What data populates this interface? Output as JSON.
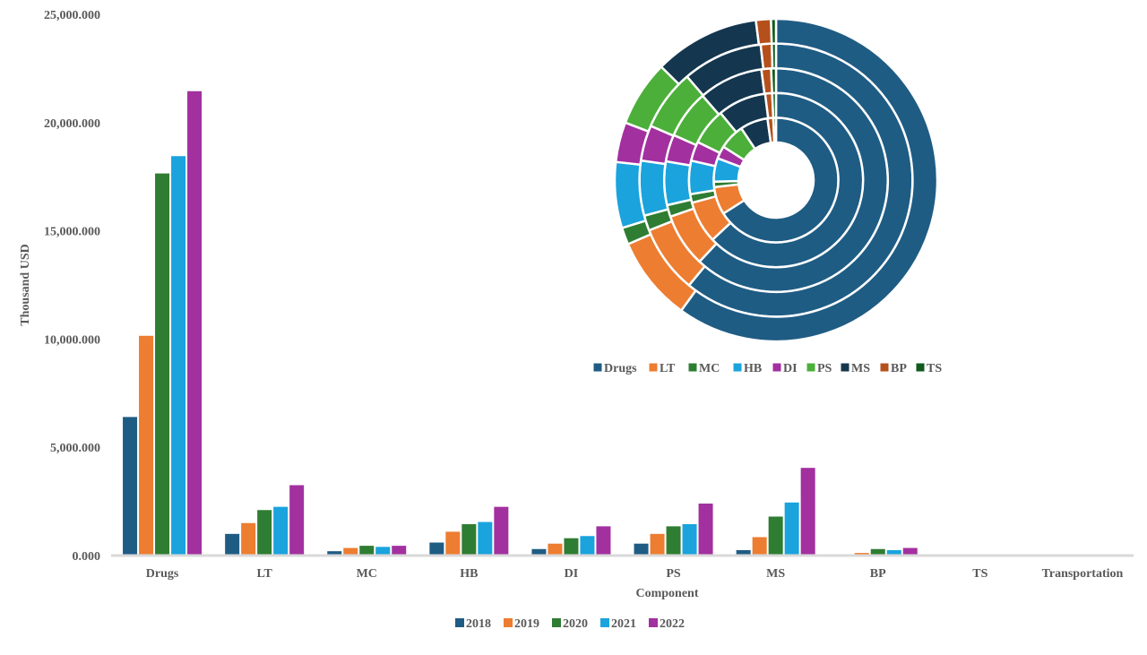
{
  "chart_data": [
    {
      "type": "bar",
      "xlabel": "Component",
      "ylabel": "Thousand USD",
      "ylim": [
        0,
        25000
      ],
      "y_ticks": [
        "0.000",
        "5,000.000",
        "10,000.000",
        "15,000.000",
        "20,000.000",
        "25,000.000"
      ],
      "y_tick_values": [
        0,
        5000,
        10000,
        15000,
        20000,
        25000
      ],
      "categories": [
        "Drugs",
        "LT",
        "MC",
        "HB",
        "DI",
        "PS",
        "MS",
        "BP",
        "TS",
        "Transportation"
      ],
      "legend_position": "bottom",
      "series": [
        {
          "name": "2018",
          "color": "#1f5c84",
          "values": [
            6400,
            1000,
            200,
            600,
            300,
            550,
            250,
            50,
            0,
            0
          ]
        },
        {
          "name": "2019",
          "color": "#ed7d31",
          "values": [
            10150,
            1500,
            350,
            1100,
            550,
            1000,
            850,
            120,
            0,
            0
          ]
        },
        {
          "name": "2020",
          "color": "#2e7d32",
          "values": [
            17650,
            2100,
            450,
            1450,
            800,
            1350,
            1800,
            300,
            0,
            0
          ]
        },
        {
          "name": "2021",
          "color": "#1aa3dd",
          "values": [
            18450,
            2250,
            400,
            1550,
            900,
            1450,
            2450,
            250,
            0,
            0
          ]
        },
        {
          "name": "2022",
          "color": "#a2309f",
          "values": [
            21450,
            3250,
            450,
            2250,
            1350,
            2400,
            4050,
            350,
            0,
            0
          ]
        }
      ]
    },
    {
      "type": "pie",
      "variant": "multi-ring donut",
      "legend_position": "bottom",
      "categories": [
        "Drugs",
        "LT",
        "MC",
        "HB",
        "DI",
        "PS",
        "MS",
        "BP",
        "TS"
      ],
      "colors": [
        "#1f5c84",
        "#ed7d31",
        "#2e7d32",
        "#1aa3dd",
        "#a2309f",
        "#4caf3a",
        "#14374f",
        "#b5501c",
        "#0f5a1c"
      ],
      "rings": [
        {
          "name": "inner",
          "values": [
            66,
            7.2,
            1.4,
            6.1,
            3.3,
            6.6,
            7.2,
            1.5,
            0.7
          ]
        },
        {
          "name": "ring-2",
          "values": [
            63,
            7.8,
            1.6,
            6.2,
            3.6,
            6.8,
            9.0,
            1.3,
            0.7
          ]
        },
        {
          "name": "ring-3",
          "values": [
            62,
            7.7,
            1.7,
            6.3,
            3.9,
            7.0,
            9.3,
            1.4,
            0.7
          ]
        },
        {
          "name": "ring-4",
          "values": [
            61,
            8.0,
            1.8,
            6.5,
            4.2,
            7.2,
            9.5,
            1.3,
            0.5
          ]
        },
        {
          "name": "outer",
          "values": [
            60,
            8.5,
            1.7,
            6.6,
            4.0,
            6.6,
            10.6,
            1.5,
            0.5
          ]
        }
      ]
    }
  ]
}
